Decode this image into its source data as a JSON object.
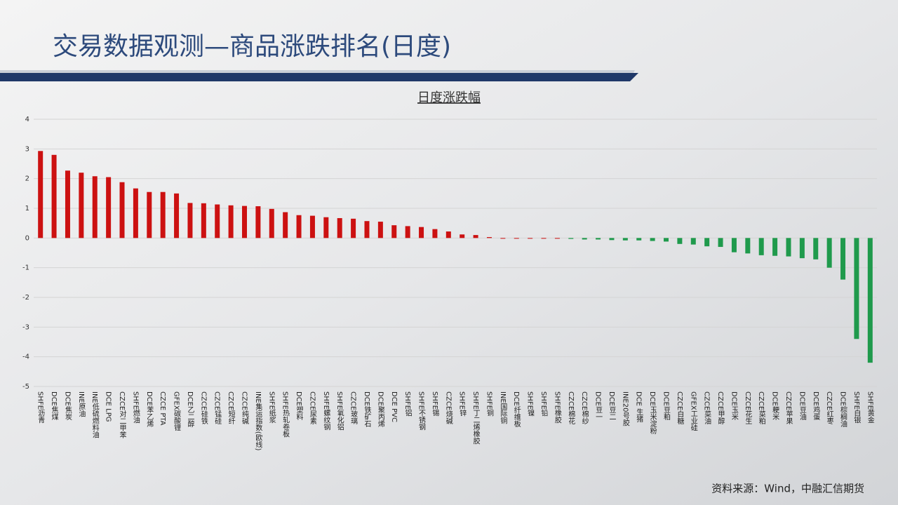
{
  "header": {
    "title": "交易数据观测—商品涨跌排名(日度)"
  },
  "chart_data": {
    "type": "bar",
    "title": "日度涨跌幅",
    "categories": [
      "SHFE沥青",
      "DCE焦煤",
      "DCE焦炭",
      "INE原油",
      "INE低硫燃料油",
      "DCE LPG",
      "CZCE对二甲苯",
      "SHFE燃油",
      "DCE苯乙烯",
      "CZCE PTA",
      "GFEX碳酸锂",
      "DCE乙二醇",
      "CZCE硅铁",
      "CZCE锰硅",
      "CZCE短纤",
      "CZCE纯碱",
      "INE集运指数(欧线)",
      "SHFE纸浆",
      "SHFE热轧卷板",
      "DCE塑料",
      "CZCE尿素",
      "SHFE螺纹钢",
      "SHFE氧化铝",
      "CZCE玻璃",
      "DCE铁矿石",
      "DCE聚丙烯",
      "DCE PVC",
      "SHFE铝",
      "SHFE不锈钢",
      "SHFE锡",
      "CZCE烧碱",
      "SHFE锌",
      "SHFE丁二烯橡胶",
      "SHFE铜",
      "INE国际铜",
      "DCE纤维板",
      "SHFE镍",
      "SHFE铅",
      "SHFE橡胶",
      "CZCE棉花",
      "CZCE棉纱",
      "DCE豆一",
      "DCE豆二",
      "INE20号胶",
      "DCE 生猪",
      "DCE玉米淀粉",
      "DCE豆粕",
      "CZCE白糖",
      "GFEX工业硅",
      "CZCE菜油",
      "CZCE甲醇",
      "DCE玉米",
      "CZCE花生",
      "CZCE菜粕",
      "DCE粳米",
      "CZCE苹果",
      "DCE豆油",
      "DCE鸡蛋",
      "CZCE红枣",
      "DCE棕榈油",
      "SHFE白银",
      "SHFE黄金"
    ],
    "values": [
      2.93,
      2.8,
      2.27,
      2.2,
      2.08,
      2.05,
      1.88,
      1.67,
      1.55,
      1.55,
      1.5,
      1.18,
      1.17,
      1.13,
      1.1,
      1.08,
      1.07,
      0.98,
      0.87,
      0.77,
      0.75,
      0.7,
      0.67,
      0.65,
      0.57,
      0.55,
      0.43,
      0.4,
      0.37,
      0.3,
      0.22,
      0.12,
      0.1,
      0.03,
      0,
      0,
      0,
      0,
      0,
      -0.03,
      -0.05,
      -0.05,
      -0.07,
      -0.08,
      -0.08,
      -0.1,
      -0.12,
      -0.2,
      -0.22,
      -0.28,
      -0.3,
      -0.48,
      -0.52,
      -0.58,
      -0.6,
      -0.62,
      -0.68,
      -0.72,
      -1.0,
      -1.4,
      -3.4,
      -4.2
    ],
    "color_positive": "#cc1111",
    "color_negative": "#1f9a4c",
    "ylim": [
      -5,
      4
    ],
    "yticks": [
      -5,
      -4,
      -3,
      -2,
      -1,
      0,
      1,
      2,
      3,
      4
    ],
    "grid": true
  },
  "footer": {
    "source": "资料来源：Wind，中融汇信期货"
  }
}
